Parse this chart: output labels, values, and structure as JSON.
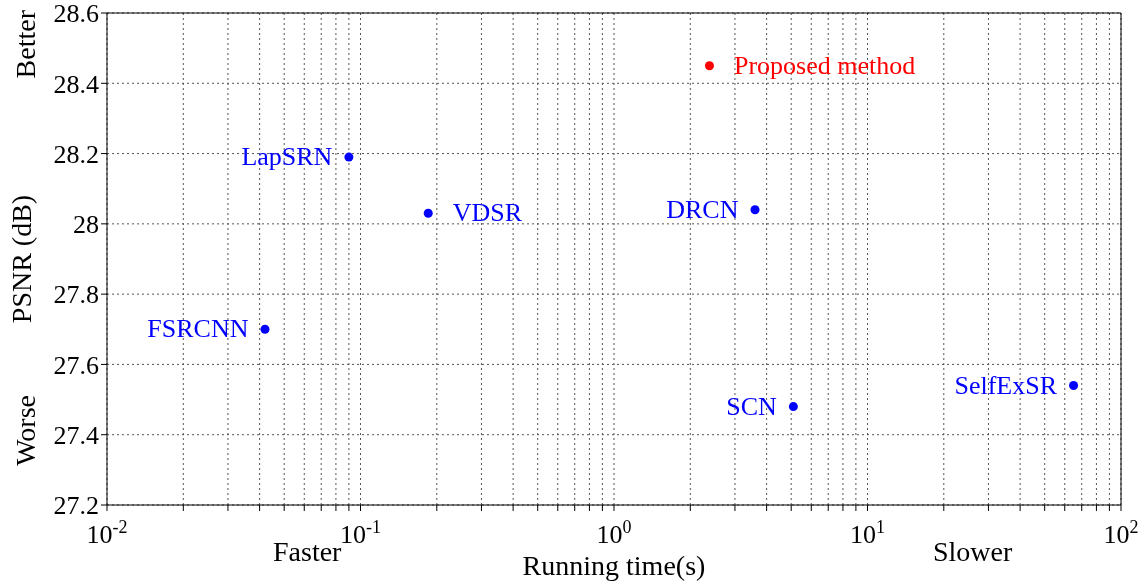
{
  "chart_data": {
    "type": "scatter",
    "xlabel": "Running time(s)",
    "ylabel": "PSNR (dB)",
    "log": "x",
    "xlim": [
      0.01,
      100
    ],
    "xticks": [
      {
        "value": 0.01,
        "label": "10$^{-2}$"
      },
      {
        "value": 0.02,
        "label": null
      },
      {
        "value": 0.03,
        "label": null
      },
      {
        "value": 0.04,
        "label": null
      },
      {
        "value": 0.05,
        "label": null
      },
      {
        "value": 0.06,
        "label": null
      },
      {
        "value": 0.07,
        "label": null
      },
      {
        "value": 0.08,
        "label": null
      },
      {
        "value": 0.09,
        "label": null
      },
      {
        "value": 0.1,
        "label": "10$^{-1}$"
      },
      {
        "value": 0.2,
        "label": null
      },
      {
        "value": 0.3,
        "label": null
      },
      {
        "value": 0.4,
        "label": null
      },
      {
        "value": 0.5,
        "label": null
      },
      {
        "value": 0.6,
        "label": null
      },
      {
        "value": 0.7,
        "label": null
      },
      {
        "value": 0.8,
        "label": null
      },
      {
        "value": 0.9,
        "label": null
      },
      {
        "value": 1,
        "label": "10$^{0}$"
      },
      {
        "value": 2,
        "label": null
      },
      {
        "value": 3,
        "label": null
      },
      {
        "value": 4,
        "label": null
      },
      {
        "value": 5,
        "label": null
      },
      {
        "value": 6,
        "label": null
      },
      {
        "value": 7,
        "label": null
      },
      {
        "value": 8,
        "label": null
      },
      {
        "value": 9,
        "label": null
      },
      {
        "value": 10,
        "label": "10$^{1}$"
      },
      {
        "value": 20,
        "label": null
      },
      {
        "value": 30,
        "label": null
      },
      {
        "value": 40,
        "label": null
      },
      {
        "value": 50,
        "label": null
      },
      {
        "value": 60,
        "label": null
      },
      {
        "value": 70,
        "label": null
      },
      {
        "value": 80,
        "label": null
      },
      {
        "value": 90,
        "label": null
      },
      {
        "value": 100,
        "label": "10$^{2}$"
      }
    ],
    "ylim": [
      27.2,
      28.6
    ],
    "yticks": [
      27.2,
      27.4,
      27.6,
      27.8,
      28,
      28.2,
      28.4,
      28.6
    ],
    "grid": true,
    "marker": "circle",
    "series": [
      {
        "name": "Proposed method",
        "color": "#ff0000",
        "x": [
          2.38
        ],
        "values": [
          28.45
        ]
      },
      {
        "name": "LapSRN",
        "color": "#0000ff",
        "x": [
          0.09
        ],
        "values": [
          28.19
        ]
      },
      {
        "name": "VDSR",
        "color": "#0000ff",
        "x": [
          0.185
        ],
        "values": [
          28.03
        ]
      },
      {
        "name": "DRCN",
        "color": "#0000ff",
        "x": [
          3.6
        ],
        "values": [
          28.04
        ]
      },
      {
        "name": "FSRCNN",
        "color": "#0000ff",
        "x": [
          0.042
        ],
        "values": [
          27.7
        ]
      },
      {
        "name": "SCN",
        "color": "#0000ff",
        "x": [
          5.1
        ],
        "values": [
          27.48
        ]
      },
      {
        "name": "SelfExSR",
        "color": "#0000ff",
        "x": [
          65
        ],
        "values": [
          27.54
        ]
      }
    ],
    "annotations": [
      "Better",
      "Worse",
      "Faster",
      "Slower"
    ]
  }
}
